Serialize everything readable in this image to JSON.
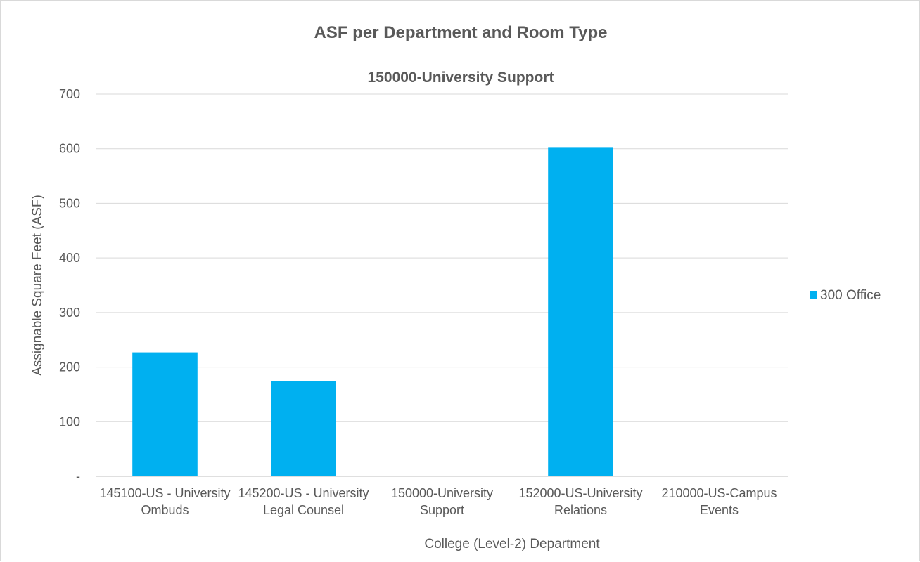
{
  "chart_data": {
    "type": "bar",
    "title": "ASF per Department and Room Type",
    "subtitle": "150000-University Support",
    "xlabel": "College (Level-2) Department",
    "ylabel": "Assignable Square Feet (ASF)",
    "categories": [
      [
        "145100-US - University",
        "Ombuds"
      ],
      [
        "145200-US - University",
        "Legal Counsel"
      ],
      [
        "150000-University",
        "Support"
      ],
      [
        "152000-US-University",
        "Relations"
      ],
      [
        "210000-US-Campus",
        "Events"
      ]
    ],
    "series": [
      {
        "name": "300 Office",
        "color": "#00b0f0",
        "values": [
          227,
          175,
          0,
          603,
          0
        ]
      }
    ],
    "ylim": [
      0,
      700
    ],
    "yticks": [
      0,
      100,
      200,
      300,
      400,
      500,
      600,
      700
    ],
    "ytick_labels": [
      "-",
      "100",
      "200",
      "300",
      "400",
      "500",
      "600",
      "700"
    ],
    "grid": true,
    "legend_position": "right",
    "gridline_color": "#d9d9d9",
    "axis_line_color": "#bfbfbf",
    "text_color": "#595959"
  }
}
